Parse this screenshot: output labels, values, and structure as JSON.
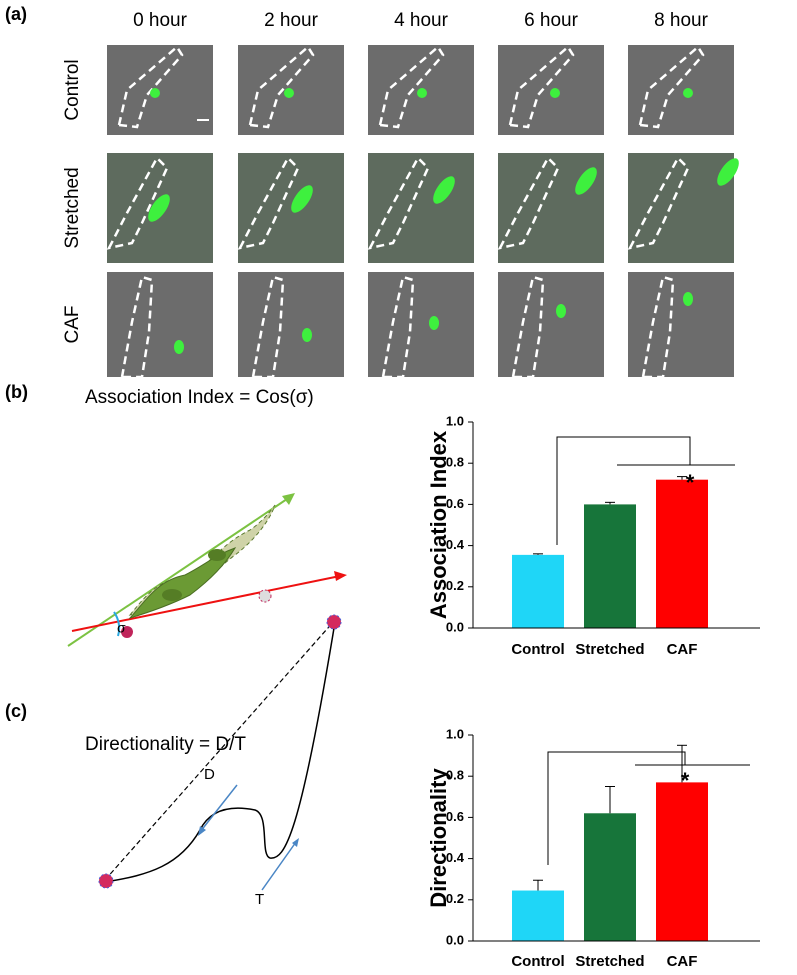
{
  "panel_labels": [
    "(a)",
    "(b)",
    "(c)"
  ],
  "timelapse": {
    "columns": [
      "0 hour",
      "2 hour",
      "4 hour",
      "6 hour",
      "8 hour"
    ],
    "rows": [
      "Control",
      "Stretched",
      "CAF"
    ]
  },
  "diagram_b": {
    "equation": "Association Index = Cos(σ)",
    "angle": "σ"
  },
  "diagram_c": {
    "equation": "Directionality = D/T",
    "displacement": "D",
    "path": "T"
  },
  "chart_data": [
    {
      "type": "bar",
      "y_label": "Association Index",
      "categories": [
        "Control",
        "Stretched",
        "CAF"
      ],
      "values": [
        0.355,
        0.6,
        0.72
      ],
      "errors": [
        0.005,
        0.01,
        0.015
      ],
      "colors": [
        "#1fd6f7",
        "#17753a",
        "#ff0000"
      ],
      "ylim": [
        0,
        1
      ],
      "yticks": [
        {
          "value": 0,
          "label": "0.0"
        },
        0.2,
        0.4,
        0.6,
        0.8,
        {
          "value": 1,
          "label": "1.0"
        }
      ],
      "annotation": "*"
    },
    {
      "type": "bar",
      "y_label": "Directionality",
      "categories": [
        "Control",
        "Stretched",
        "CAF"
      ],
      "values": [
        0.245,
        0.62,
        0.77
      ],
      "errors": [
        0.05,
        0.13,
        0.18
      ],
      "colors": [
        "#1fd6f7",
        "#17753a",
        "#ff0000"
      ],
      "ylim": [
        0,
        1
      ],
      "yticks": [
        {
          "value": 0,
          "label": "0.0"
        },
        0.2,
        0.4,
        0.6,
        0.8,
        {
          "value": 1,
          "label": "1.0"
        }
      ],
      "annotation": "*"
    }
  ]
}
